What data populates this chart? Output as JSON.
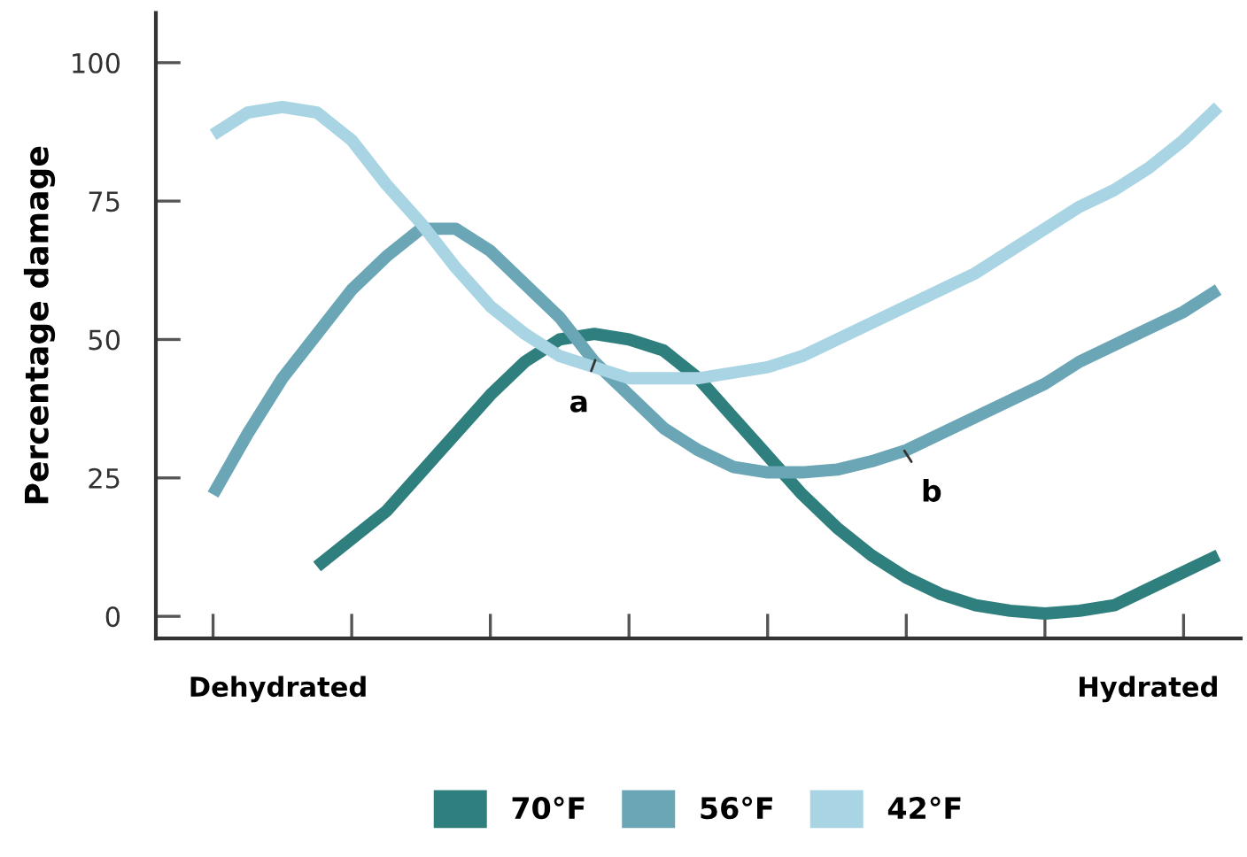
{
  "chart_data": {
    "type": "line",
    "ylabel": "Percentage damage",
    "categories": [
      null,
      null,
      null,
      null,
      null,
      null,
      null,
      null,
      null,
      null,
      null,
      null,
      null,
      null,
      null,
      null,
      null,
      null,
      null,
      null,
      null,
      null,
      null,
      null,
      null,
      null,
      null,
      null,
      null,
      null
    ],
    "ylim": [
      -4,
      109
    ],
    "yticks": [
      0,
      25,
      50,
      75,
      100
    ],
    "grid": false,
    "legend": "bottom",
    "marker": "none",
    "line_style": "solid",
    "series": [
      {
        "name": "70°F",
        "color": "#2e7f7d",
        "values": [
          null,
          null,
          null,
          9,
          14,
          19,
          26,
          33,
          40,
          46,
          50,
          51,
          50,
          48,
          43,
          36,
          29,
          22,
          16,
          11,
          7,
          4,
          2,
          1,
          0.5,
          1,
          2,
          5,
          8,
          11
        ]
      },
      {
        "name": "56°F",
        "color": "#6aa6b5",
        "values": [
          22,
          33,
          43,
          51,
          59,
          65,
          70,
          70,
          66,
          60,
          54,
          46,
          40,
          34,
          30,
          27,
          26,
          26,
          26.5,
          28,
          30,
          33,
          36,
          39,
          42,
          46,
          49,
          52,
          55,
          59
        ]
      },
      {
        "name": "42°F",
        "color": "#a8d4e3",
        "values": [
          87,
          91,
          92,
          91,
          86,
          78,
          71,
          63,
          56,
          51,
          47,
          45,
          43,
          43,
          43,
          44,
          45,
          47,
          50,
          53,
          56,
          59,
          62,
          66,
          70,
          74,
          77,
          81,
          86,
          92
        ]
      }
    ],
    "annotations": [
      "a",
      "b",
      "Dehydrated",
      "Hydrated"
    ]
  }
}
